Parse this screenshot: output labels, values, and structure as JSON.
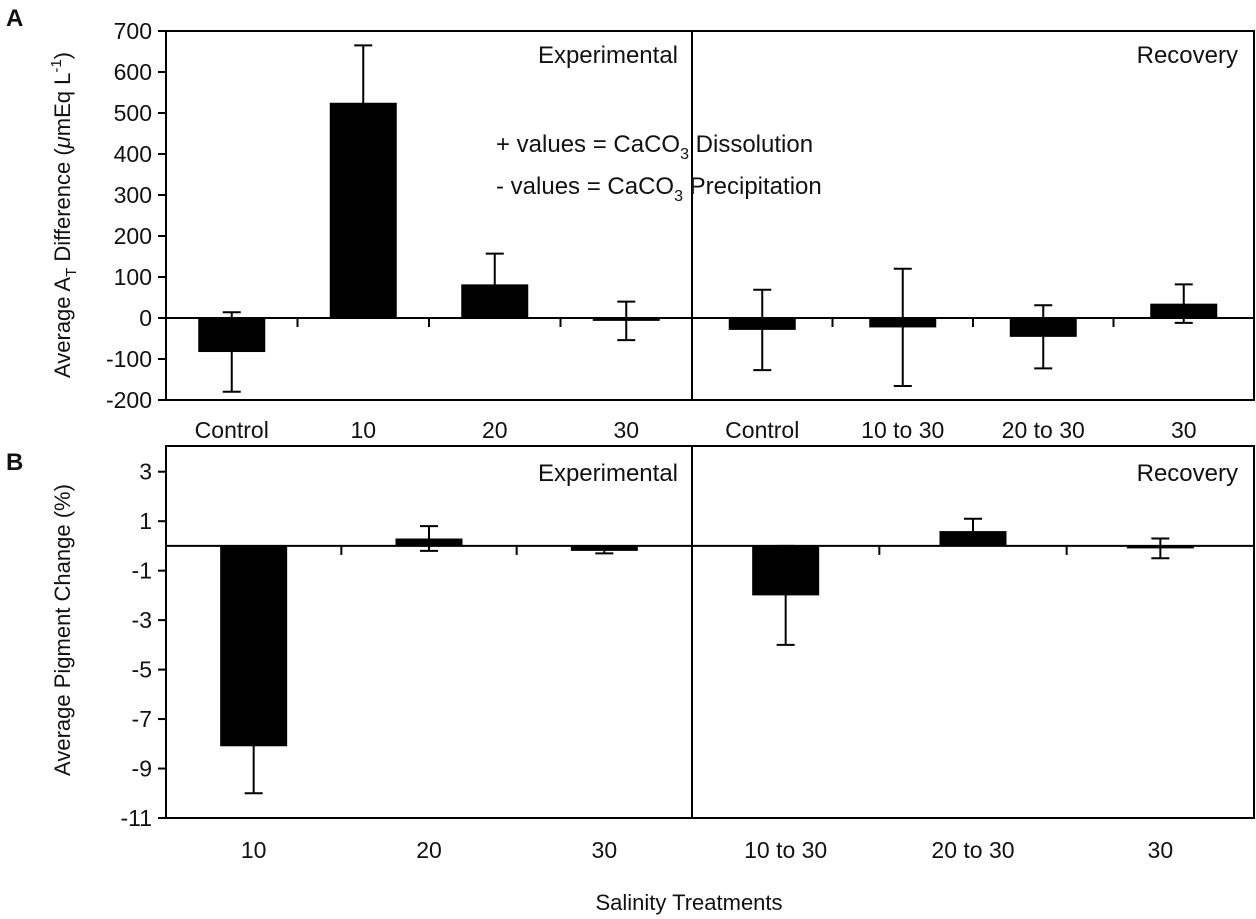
{
  "figure": {
    "x_title": "Salinity Treatments"
  },
  "chart_data": [
    {
      "type": "bar",
      "panel_label": "A",
      "ylabel_parts": {
        "pre": "Average A",
        "sub": "T",
        "mid": " Difference (",
        "greek": "μ",
        "post": "mEq L",
        "sup": "-1",
        "end": ")"
      },
      "ylim": [
        -200,
        700
      ],
      "yticks": [
        "700",
        "600",
        "500",
        "400",
        "300",
        "200",
        "100",
        "0",
        "-100",
        "-200"
      ],
      "ytick_values": [
        700,
        600,
        500,
        400,
        300,
        200,
        100,
        0,
        -100,
        -200
      ],
      "annotation": {
        "line1": {
          "pre": "+ values = CaCO",
          "sub": "3",
          "post": " Dissolution"
        },
        "line2": {
          "pre": "- values = CaCO",
          "sub": "3",
          "post": " Precipitation"
        }
      },
      "sections": [
        {
          "name": "Experimental",
          "categories": [
            "Control",
            "10",
            "20",
            "30"
          ],
          "values": [
            -83,
            525,
            82,
            -7
          ],
          "error": [
            97,
            140,
            75,
            47
          ]
        },
        {
          "name": "Recovery",
          "categories": [
            "Control",
            "10 to 30",
            "20 to 30",
            "30"
          ],
          "values": [
            -29,
            -23,
            -46,
            35
          ],
          "error": [
            98,
            143,
            77,
            47
          ]
        }
      ]
    },
    {
      "type": "bar",
      "panel_label": "B",
      "ylabel": "Average Pigment Change (%)",
      "ylim": [
        -11,
        4
      ],
      "yticks": [
        "3",
        "1",
        "-1",
        "-3",
        "-5",
        "-7",
        "-9",
        "-11"
      ],
      "ytick_values": [
        3,
        1,
        -1,
        -3,
        -5,
        -7,
        -9,
        -11
      ],
      "sections": [
        {
          "name": "Experimental",
          "categories": [
            "10",
            "20",
            "30"
          ],
          "values": [
            -8.1,
            0.3,
            -0.2
          ],
          "error": [
            1.9,
            0.5,
            0.1
          ]
        },
        {
          "name": "Recovery",
          "categories": [
            "10 to 30",
            "20 to 30",
            "30"
          ],
          "values": [
            -2.0,
            0.6,
            -0.1
          ],
          "error": [
            2.0,
            0.5,
            0.4
          ]
        }
      ]
    }
  ]
}
